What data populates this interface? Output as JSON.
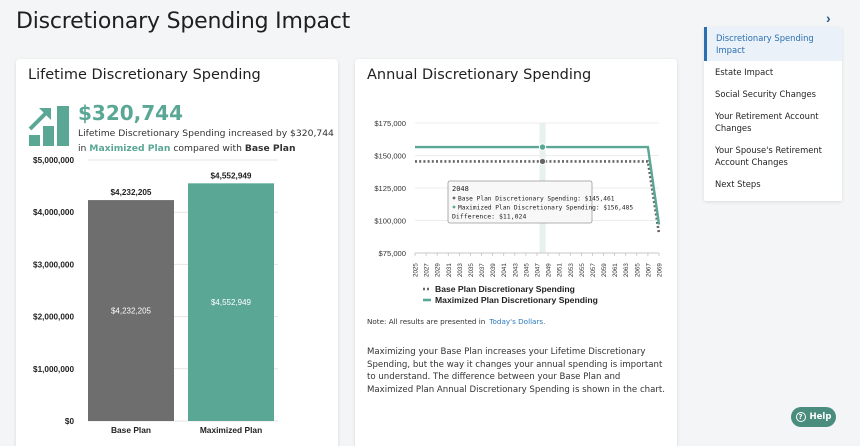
{
  "page": {
    "title": "Discretionary Spending Impact"
  },
  "lifetime": {
    "title": "Lifetime Discretionary Spending",
    "amount": "$320,744",
    "desc_prefix": "Lifetime Discretionary Spending increased by $320,744 in ",
    "desc_plan": "Maximized Plan",
    "desc_mid": " compared with ",
    "desc_base": "Base Plan",
    "chart_data": {
      "type": "bar",
      "categories": [
        "Base Plan",
        "Maximized Plan"
      ],
      "values": [
        4232205,
        4552949
      ],
      "value_labels": [
        "$4,232,205",
        "$4,552,949"
      ],
      "colors": [
        "#6e6e6e",
        "#5aa796"
      ],
      "ylim": [
        0,
        5000000
      ],
      "yticks": [
        0,
        1000000,
        2000000,
        3000000,
        4000000,
        5000000
      ],
      "ytick_labels": [
        "$0",
        "$1,000,000",
        "$2,000,000",
        "$3,000,000",
        "$4,000,000",
        "$5,000,000"
      ]
    }
  },
  "annual": {
    "title": "Annual Discretionary Spending",
    "chart_data": {
      "type": "line",
      "x": [
        2025,
        2027,
        2029,
        2031,
        2033,
        2035,
        2037,
        2039,
        2041,
        2043,
        2045,
        2047,
        2049,
        2051,
        2053,
        2055,
        2057,
        2059,
        2061,
        2063,
        2065,
        2067,
        2069
      ],
      "xtick_labels": [
        "2025",
        "2027",
        "2029",
        "2031",
        "2033",
        "2035",
        "2037",
        "2039",
        "2041",
        "2043",
        "2045",
        "2047",
        "2049",
        "2051",
        "2053",
        "2055",
        "2057",
        "2059",
        "2061",
        "2063",
        "2065",
        "2067",
        "2069"
      ],
      "ylim": [
        75000,
        175000
      ],
      "yticks": [
        75000,
        100000,
        125000,
        150000,
        175000
      ],
      "ytick_labels": [
        "$75,000",
        "$100,000",
        "$125,000",
        "$150,000",
        "$175,000"
      ],
      "series": [
        {
          "name": "Base Plan Discretionary Spending",
          "color": "#666666",
          "style": "dotted",
          "points": [
            [
              2025,
              145461
            ],
            [
              2067,
              145461
            ],
            [
              2069,
              90000
            ]
          ]
        },
        {
          "name": "Maximized Plan Discretionary Spending",
          "color": "#5aa796",
          "style": "solid",
          "points": [
            [
              2025,
              156485
            ],
            [
              2067,
              156485
            ],
            [
              2069,
              97000
            ]
          ]
        }
      ],
      "highlight_x": 2048,
      "tooltip": {
        "year": "2048",
        "base": "Base Plan Discretionary Spending: $145,461",
        "max": "Maximized Plan Discretionary Spending: $156,485",
        "diff": "Difference: $11,024"
      }
    },
    "note_prefix": "Note: All results are presented in",
    "note_link": "Today's Dollars.",
    "paragraph": "Maximizing your Base Plan increases your Lifetime Discretionary Spending, but the way it changes your annual spending is important to understand. The difference between your Base Plan and Maximized Plan Annual Discretionary Spending is shown in the chart."
  },
  "nav": {
    "items": [
      {
        "label": "Discretionary Spending Impact",
        "active": true
      },
      {
        "label": "Estate Impact",
        "active": false
      },
      {
        "label": "Social Security Changes",
        "active": false
      },
      {
        "label": "Your Retirement Account Changes",
        "active": false
      },
      {
        "label": "Your Spouse's Retirement Account Changes",
        "active": false
      },
      {
        "label": "Next Steps",
        "active": false
      }
    ],
    "collapse_icon": "chevron-right-icon"
  },
  "help": {
    "label": "Help"
  }
}
